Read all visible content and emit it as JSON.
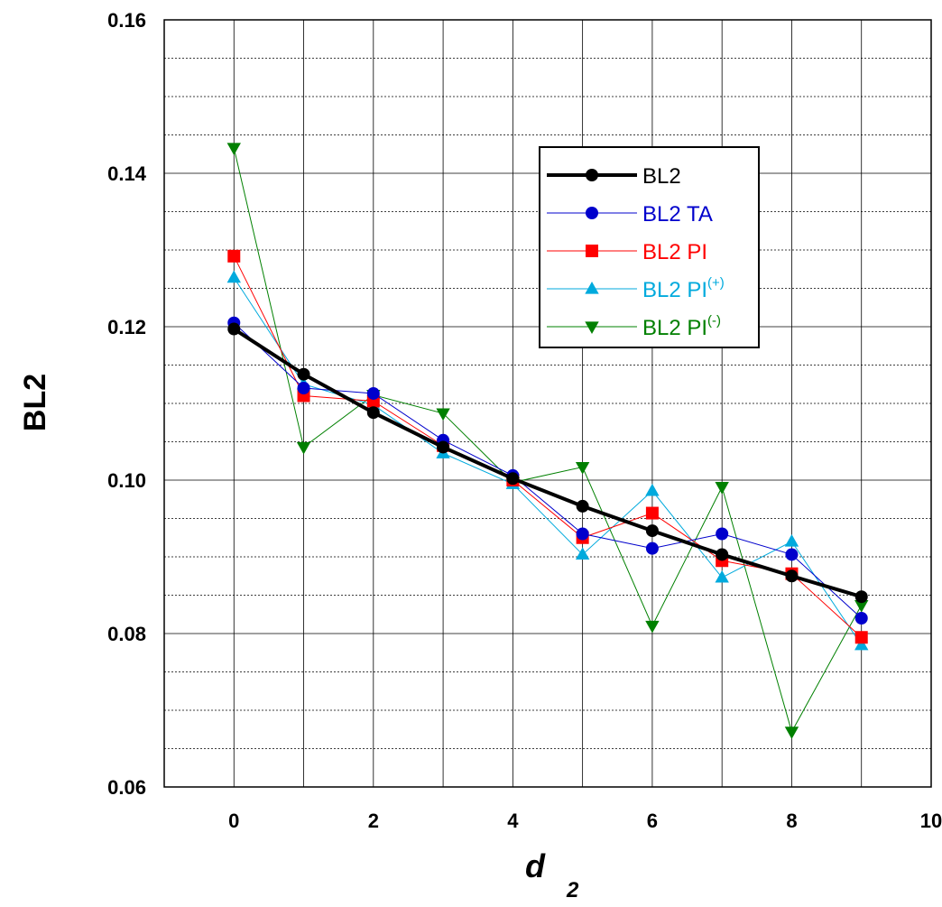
{
  "chart_data": {
    "type": "line",
    "title": "",
    "xlabel": "d",
    "xlabel_subscript": "2",
    "ylabel": "BL2",
    "xlim": [
      -1,
      10
    ],
    "ylim": [
      0.06,
      0.16
    ],
    "x_ticks": [
      0,
      2,
      4,
      6,
      8,
      10
    ],
    "x_tick_labels": [
      "0",
      "2",
      "4",
      "6",
      "8",
      "10"
    ],
    "y_ticks": [
      0.06,
      0.08,
      0.1,
      0.12,
      0.14,
      0.16
    ],
    "y_tick_labels": [
      "0.06",
      "0.08",
      "0.10",
      "0.12",
      "0.14",
      "0.16"
    ],
    "grid": true,
    "legend_position": "top-right",
    "x": [
      0,
      1,
      2,
      3,
      4,
      5,
      6,
      7,
      8,
      9
    ],
    "series": [
      {
        "name": "BL2",
        "label": "BL2",
        "sup": "",
        "color": "#000000",
        "marker": "circle",
        "values": [
          0.1197,
          0.1138,
          0.1088,
          0.1043,
          0.1002,
          0.0966,
          0.0934,
          0.0903,
          0.0875,
          0.0848
        ]
      },
      {
        "name": "BL2 TA",
        "label": "BL2  TA",
        "sup": "",
        "color": "#0000cc",
        "marker": "circle",
        "values": [
          0.1205,
          0.112,
          0.1113,
          0.1052,
          0.1006,
          0.093,
          0.0911,
          0.093,
          0.0903,
          0.082
        ]
      },
      {
        "name": "BL2 PI",
        "label": "BL2  PI",
        "sup": "",
        "color": "#ff0000",
        "marker": "square",
        "values": [
          0.1292,
          0.111,
          0.1103,
          0.1045,
          0.1,
          0.0925,
          0.0957,
          0.0895,
          0.0878,
          0.0795
        ]
      },
      {
        "name": "BL2 PI(+)",
        "label": "BL2  PI",
        "sup": "(+)",
        "color": "#00aadd",
        "marker": "triangle-up",
        "values": [
          0.1264,
          0.1125,
          0.1098,
          0.1035,
          0.0995,
          0.0903,
          0.0986,
          0.0873,
          0.092,
          0.0785
        ]
      },
      {
        "name": "BL2 PI(-)",
        "label": "BL2  PI",
        "sup": "(-)",
        "color": "#008000",
        "marker": "triangle-down",
        "values": [
          0.1433,
          0.1043,
          0.1111,
          0.1087,
          0.0997,
          0.1017,
          0.081,
          0.0991,
          0.0672,
          0.0837
        ]
      }
    ]
  }
}
